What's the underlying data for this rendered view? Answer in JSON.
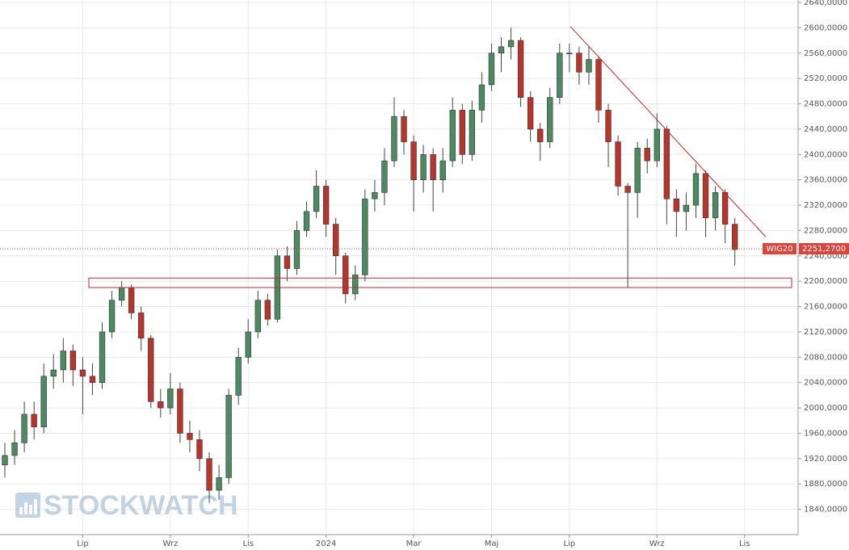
{
  "chart_data": {
    "type": "candlestick",
    "watermark": "STOCKWATCH",
    "categories": [
      "",
      null,
      null,
      null,
      null,
      null,
      null,
      null,
      "Lip",
      null,
      null,
      null,
      null,
      null,
      null,
      null,
      null,
      "Wrz",
      null,
      null,
      null,
      null,
      null,
      null,
      null,
      "Lis",
      null,
      null,
      null,
      null,
      null,
      null,
      null,
      "2024",
      null,
      null,
      null,
      null,
      null,
      null,
      null,
      null,
      "Mar",
      null,
      null,
      null,
      null,
      null,
      null,
      null,
      "Maj",
      null,
      null,
      null,
      null,
      null,
      null,
      null,
      "Lip",
      null,
      null,
      null,
      null,
      null,
      null,
      null,
      null,
      "Wrz",
      null,
      null,
      null,
      null,
      null,
      null,
      null,
      null,
      "Lis",
      null,
      null,
      null,
      null,
      null
    ],
    "series": [
      {
        "up_color": "#4d8a62",
        "down_color": "#b8352b",
        "open": [
          1910,
          1925,
          1945,
          1990,
          1970,
          2050,
          2060,
          2090,
          2060,
          2050,
          2040,
          2120,
          2170,
          2190,
          2150,
          2110,
          2010,
          2000,
          2030,
          1960,
          1950,
          1920,
          1870,
          1890,
          2020,
          2080,
          2120,
          2170,
          2140,
          2240,
          2220,
          2280,
          2310,
          2350,
          2290,
          2240,
          2180,
          2210,
          2330,
          2340,
          2390,
          2460,
          2420,
          2360,
          2400,
          2360,
          2390,
          2470,
          2400,
          2470,
          2510,
          2560,
          2570,
          2580,
          2490,
          2440,
          2420,
          2490,
          2560,
          2560,
          2530,
          2550,
          2470,
          2420,
          2350,
          2340,
          2410,
          2390,
          2440,
          2330,
          2310,
          2320,
          2370,
          2300,
          2340,
          2290,
          null,
          null,
          null,
          null,
          null,
          null
        ],
        "high": [
          1945,
          1965,
          2010,
          2010,
          2070,
          2085,
          2110,
          2100,
          2080,
          2070,
          2135,
          2185,
          2200,
          2195,
          2160,
          2115,
          2030,
          2055,
          2040,
          1980,
          1965,
          1930,
          1910,
          2030,
          2095,
          2140,
          2185,
          2180,
          2250,
          2255,
          2295,
          2325,
          2375,
          2360,
          2300,
          2245,
          2225,
          2345,
          2360,
          2410,
          2490,
          2470,
          2430,
          2415,
          2410,
          2410,
          2490,
          2480,
          2485,
          2530,
          2575,
          2585,
          2600,
          2585,
          2500,
          2450,
          2505,
          2575,
          2575,
          2570,
          2570,
          2555,
          2480,
          2430,
          2355,
          2420,
          2425,
          2465,
          2445,
          2345,
          2340,
          2385,
          2375,
          2350,
          2345,
          2300,
          null,
          null,
          null,
          null,
          null,
          null
        ],
        "low": [
          1890,
          1910,
          1930,
          1950,
          1960,
          2030,
          2040,
          2035,
          1990,
          2020,
          2030,
          2110,
          2160,
          2140,
          2090,
          2000,
          1985,
          1990,
          1945,
          1930,
          1900,
          1850,
          1855,
          1880,
          2005,
          2070,
          2110,
          2130,
          2135,
          2200,
          2210,
          2270,
          2300,
          2270,
          2210,
          2165,
          2170,
          2200,
          2310,
          2320,
          2380,
          2400,
          2310,
          2340,
          2310,
          2340,
          2380,
          2385,
          2390,
          2450,
          2500,
          2530,
          2550,
          2475,
          2420,
          2390,
          2410,
          2480,
          2530,
          2510,
          2510,
          2450,
          2380,
          2335,
          2190,
          2300,
          2370,
          2380,
          2290,
          2270,
          2280,
          2300,
          2270,
          2280,
          2260,
          2225,
          null,
          null,
          null,
          null,
          null,
          null
        ],
        "close": [
          1925,
          1945,
          1990,
          1970,
          2050,
          2060,
          2090,
          2060,
          2050,
          2040,
          2120,
          2170,
          2190,
          2150,
          2110,
          2010,
          2000,
          2030,
          1960,
          1950,
          1920,
          1870,
          1890,
          2020,
          2080,
          2120,
          2170,
          2140,
          2240,
          2220,
          2280,
          2310,
          2350,
          2290,
          2240,
          2180,
          2210,
          2330,
          2340,
          2390,
          2460,
          2420,
          2360,
          2400,
          2360,
          2390,
          2470,
          2400,
          2470,
          2510,
          2560,
          2570,
          2580,
          2490,
          2440,
          2420,
          2490,
          2560,
          2560,
          2530,
          2550,
          2470,
          2420,
          2350,
          2340,
          2410,
          2390,
          2440,
          2330,
          2310,
          2320,
          2370,
          2300,
          2340,
          2290,
          2250,
          null,
          null,
          null,
          null,
          null,
          null
        ]
      }
    ],
    "last_price": {
      "name": "WIG20",
      "value": 2251.27,
      "label": "2251,2700",
      "color": "#d9453a"
    },
    "zone": {
      "low": 2190,
      "high": 2205,
      "color": "#c0282a"
    },
    "trendline": {
      "start": 2602,
      "end": 2270,
      "color": "#c0282a"
    },
    "ylim": [
      1800,
      2640
    ],
    "yticks": [
      {
        "value": 1840,
        "label": "1840,0000"
      },
      {
        "value": 1880,
        "label": "1880,0000"
      },
      {
        "value": 1920,
        "label": "1920,0000"
      },
      {
        "value": 1960,
        "label": "1960,0000"
      },
      {
        "value": 2000,
        "label": "2000,0000"
      },
      {
        "value": 2040,
        "label": "2040,0000"
      },
      {
        "value": 2080,
        "label": "2080,0000"
      },
      {
        "value": 2120,
        "label": "2120,0000"
      },
      {
        "value": 2160,
        "label": "2160,0000"
      },
      {
        "value": 2200,
        "label": "2200,0000"
      },
      {
        "value": 2240,
        "label": "2240,0000"
      },
      {
        "value": 2280,
        "label": "2280,0000"
      },
      {
        "value": 2320,
        "label": "2320,0000"
      },
      {
        "value": 2360,
        "label": "2360,0000"
      },
      {
        "value": 2400,
        "label": "2400,0000"
      },
      {
        "value": 2440,
        "label": "2440,0000"
      },
      {
        "value": 2480,
        "label": "2480,0000"
      },
      {
        "value": 2520,
        "label": "2520,0000"
      },
      {
        "value": 2560,
        "label": "2560,0000"
      },
      {
        "value": 2600,
        "label": "2600,0000"
      },
      {
        "value": 2640,
        "label": "2640,0000"
      }
    ],
    "grid": true
  }
}
